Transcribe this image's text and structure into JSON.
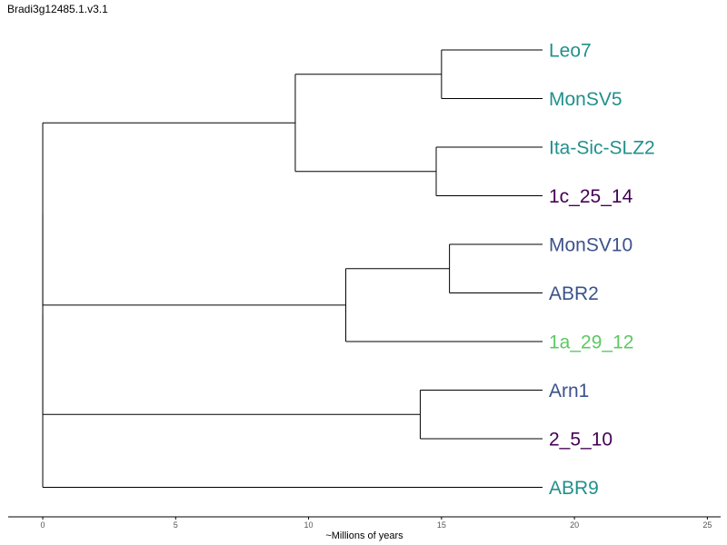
{
  "chart_data": {
    "type": "dendrogram",
    "title": "Bradi3g12485.1.v3.1",
    "xlabel": "~Millions of years",
    "xlim": [
      -1.3,
      25.5
    ],
    "xticks": [
      0,
      5,
      10,
      15,
      20,
      25
    ],
    "tip_x": 18.8,
    "colors": {
      "teal": "#21908C",
      "purple": "#440154",
      "blue": "#3B528B",
      "green": "#5DC863"
    },
    "tips": [
      {
        "label": "Leo7",
        "color": "#21908C"
      },
      {
        "label": "MonSV5",
        "color": "#21908C"
      },
      {
        "label": "Ita-Sic-SLZ2",
        "color": "#21908C"
      },
      {
        "label": "1c_25_14",
        "color": "#440154"
      },
      {
        "label": "MonSV10",
        "color": "#3B528B"
      },
      {
        "label": "ABR2",
        "color": "#3B528B"
      },
      {
        "label": "1a_29_12",
        "color": "#5DC863"
      },
      {
        "label": "Arn1",
        "color": "#3B528B"
      },
      {
        "label": "2_5_10",
        "color": "#440154"
      },
      {
        "label": "ABR9",
        "color": "#21908C"
      }
    ],
    "tree": {
      "x": 0.0,
      "children": [
        {
          "x": 0.0,
          "children": [
            {
              "x": 0.0,
              "children": [
                {
                  "x": 9.5,
                  "children": [
                    {
                      "x": 15.0,
                      "children": [
                        {
                          "tip": 0
                        },
                        {
                          "tip": 1
                        }
                      ]
                    },
                    {
                      "x": 14.8,
                      "children": [
                        {
                          "tip": 2
                        },
                        {
                          "tip": 3
                        }
                      ]
                    }
                  ]
                },
                {
                  "x": 11.4,
                  "children": [
                    {
                      "x": 15.3,
                      "children": [
                        {
                          "tip": 4
                        },
                        {
                          "tip": 5
                        }
                      ]
                    },
                    {
                      "tip": 6
                    }
                  ]
                }
              ]
            },
            {
              "x": 14.2,
              "children": [
                {
                  "tip": 7
                },
                {
                  "tip": 8
                }
              ]
            }
          ]
        },
        {
          "tip": 9
        }
      ]
    }
  }
}
